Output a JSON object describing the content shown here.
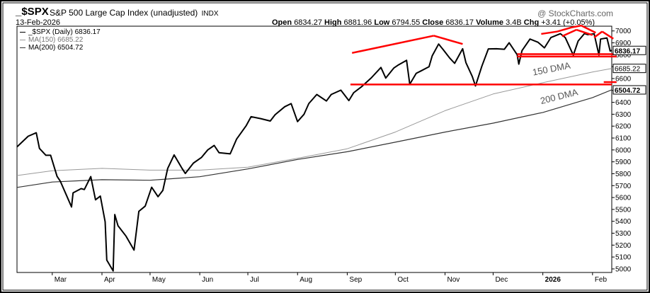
{
  "header": {
    "symbol": "_$SPX",
    "description": "S&P 500 Large Cap Index (unadjusted)",
    "exchange": "INDX",
    "date": "13-Feb-2026",
    "open_label": "Open",
    "open": "6834.27",
    "high_label": "High",
    "high": "6881.96",
    "low_label": "Low",
    "low": "6794.55",
    "close_label": "Close",
    "close": "6836.17",
    "volume_label": "Volume",
    "volume": "3.4B",
    "chg_label": "Chg",
    "chg": "+3.41 (+0.05%)",
    "watermark": "@ StockCharts.com"
  },
  "legend": [
    {
      "label": "_$SPX (Daily) 6836.17",
      "color": "#000000"
    },
    {
      "label": "MA(150) 6685.22",
      "color": "#999999"
    },
    {
      "label": "MA(200) 6504.72",
      "color": "#333333"
    }
  ],
  "chart_data": {
    "type": "line",
    "ylim": [
      4970,
      7040
    ],
    "y_ticks": [
      5000,
      5100,
      5200,
      5300,
      5400,
      5500,
      5600,
      5700,
      5800,
      5900,
      6000,
      6100,
      6200,
      6300,
      6400,
      6500,
      6600,
      6700,
      6800,
      6900,
      7000
    ],
    "x_labels": [
      {
        "label": "Mar",
        "date": "2025-03-01"
      },
      {
        "label": "Apr",
        "date": "2025-04-01"
      },
      {
        "label": "May",
        "date": "2025-05-01"
      },
      {
        "label": "Jun",
        "date": "2025-06-01"
      },
      {
        "label": "Jul",
        "date": "2025-07-01"
      },
      {
        "label": "Aug",
        "date": "2025-08-01"
      },
      {
        "label": "Sep",
        "date": "2025-09-01"
      },
      {
        "label": "Oct",
        "date": "2025-10-01"
      },
      {
        "label": "Nov",
        "date": "2025-11-01"
      },
      {
        "label": "Dec",
        "date": "2025-12-01"
      },
      {
        "label": "2026",
        "date": "2026-01-01",
        "bold": true
      },
      {
        "label": "Feb",
        "date": "2026-02-01"
      }
    ],
    "x_range": [
      "2025-02-07",
      "2026-02-13"
    ],
    "series": [
      {
        "name": "_$SPX (Daily)",
        "color": "#000000",
        "points": [
          [
            "2025-02-07",
            6026
          ],
          [
            "2025-02-14",
            6115
          ],
          [
            "2025-02-19",
            6144
          ],
          [
            "2025-02-21",
            6013
          ],
          [
            "2025-02-25",
            5955
          ],
          [
            "2025-02-28",
            5955
          ],
          [
            "2025-03-04",
            5778
          ],
          [
            "2025-03-06",
            5738
          ],
          [
            "2025-03-10",
            5614
          ],
          [
            "2025-03-13",
            5521
          ],
          [
            "2025-03-14",
            5639
          ],
          [
            "2025-03-19",
            5675
          ],
          [
            "2025-03-21",
            5667
          ],
          [
            "2025-03-25",
            5776
          ],
          [
            "2025-03-28",
            5581
          ],
          [
            "2025-03-31",
            5612
          ],
          [
            "2025-04-03",
            5396
          ],
          [
            "2025-04-04",
            5074
          ],
          [
            "2025-04-08",
            4983
          ],
          [
            "2025-04-09",
            5457
          ],
          [
            "2025-04-11",
            5363
          ],
          [
            "2025-04-16",
            5275
          ],
          [
            "2025-04-21",
            5158
          ],
          [
            "2025-04-24",
            5484
          ],
          [
            "2025-04-28",
            5528
          ],
          [
            "2025-05-02",
            5686
          ],
          [
            "2025-05-06",
            5607
          ],
          [
            "2025-05-09",
            5660
          ],
          [
            "2025-05-12",
            5844
          ],
          [
            "2025-05-16",
            5958
          ],
          [
            "2025-05-21",
            5844
          ],
          [
            "2025-05-23",
            5802
          ],
          [
            "2025-05-28",
            5889
          ],
          [
            "2025-06-02",
            5936
          ],
          [
            "2025-06-06",
            6000
          ],
          [
            "2025-06-10",
            6038
          ],
          [
            "2025-06-13",
            5977
          ],
          [
            "2025-06-20",
            5967
          ],
          [
            "2025-06-24",
            6092
          ],
          [
            "2025-06-30",
            6205
          ],
          [
            "2025-07-03",
            6279
          ],
          [
            "2025-07-09",
            6263
          ],
          [
            "2025-07-15",
            6243
          ],
          [
            "2025-07-18",
            6296
          ],
          [
            "2025-07-24",
            6363
          ],
          [
            "2025-07-28",
            6389
          ],
          [
            "2025-08-01",
            6238
          ],
          [
            "2025-08-05",
            6299
          ],
          [
            "2025-08-08",
            6389
          ],
          [
            "2025-08-13",
            6466
          ],
          [
            "2025-08-19",
            6411
          ],
          [
            "2025-08-22",
            6466
          ],
          [
            "2025-08-28",
            6502
          ],
          [
            "2025-09-02",
            6415
          ],
          [
            "2025-09-05",
            6481
          ],
          [
            "2025-09-10",
            6532
          ],
          [
            "2025-09-16",
            6606
          ],
          [
            "2025-09-22",
            6693
          ],
          [
            "2025-09-25",
            6604
          ],
          [
            "2025-09-30",
            6688
          ],
          [
            "2025-10-03",
            6715
          ],
          [
            "2025-10-08",
            6753
          ],
          [
            "2025-10-10",
            6552
          ],
          [
            "2025-10-14",
            6644
          ],
          [
            "2025-10-17",
            6664
          ],
          [
            "2025-10-22",
            6699
          ],
          [
            "2025-10-24",
            6791
          ],
          [
            "2025-10-28",
            6890
          ],
          [
            "2025-10-31",
            6840
          ],
          [
            "2025-11-04",
            6771
          ],
          [
            "2025-11-07",
            6728
          ],
          [
            "2025-11-12",
            6850
          ],
          [
            "2025-11-14",
            6734
          ],
          [
            "2025-11-18",
            6617
          ],
          [
            "2025-11-20",
            6538
          ],
          [
            "2025-11-24",
            6705
          ],
          [
            "2025-11-28",
            6849
          ],
          [
            "2025-12-03",
            6850
          ],
          [
            "2025-12-08",
            6846
          ],
          [
            "2025-12-11",
            6901
          ],
          [
            "2025-12-16",
            6800
          ],
          [
            "2025-12-17",
            6721
          ],
          [
            "2025-12-19",
            6834
          ],
          [
            "2025-12-24",
            6932
          ],
          [
            "2025-12-29",
            6905
          ],
          [
            "2026-01-02",
            6858
          ],
          [
            "2026-01-06",
            6944
          ],
          [
            "2026-01-12",
            6977
          ],
          [
            "2026-01-15",
            6944
          ],
          [
            "2026-01-20",
            6797
          ],
          [
            "2026-01-23",
            6915
          ],
          [
            "2026-01-27",
            6978
          ],
          [
            "2026-01-29",
            6969
          ],
          [
            "2026-02-02",
            6976
          ],
          [
            "2026-02-05",
            6798
          ],
          [
            "2026-02-06",
            6932
          ],
          [
            "2026-02-10",
            6941
          ],
          [
            "2026-02-12",
            6832
          ],
          [
            "2026-02-13",
            6836
          ]
        ]
      },
      {
        "name": "MA(150)",
        "color": "#999999",
        "points": [
          [
            "2025-02-07",
            5785
          ],
          [
            "2025-03-01",
            5825
          ],
          [
            "2025-04-01",
            5845
          ],
          [
            "2025-05-01",
            5830
          ],
          [
            "2025-06-01",
            5830
          ],
          [
            "2025-07-01",
            5855
          ],
          [
            "2025-08-01",
            5930
          ],
          [
            "2025-09-01",
            6010
          ],
          [
            "2025-10-01",
            6150
          ],
          [
            "2025-11-01",
            6330
          ],
          [
            "2025-12-01",
            6470
          ],
          [
            "2026-01-01",
            6565
          ],
          [
            "2026-02-01",
            6655
          ],
          [
            "2026-02-13",
            6685
          ]
        ]
      },
      {
        "name": "MA(200)",
        "color": "#333333",
        "points": [
          [
            "2025-02-07",
            5685
          ],
          [
            "2025-03-01",
            5730
          ],
          [
            "2025-04-01",
            5750
          ],
          [
            "2025-05-01",
            5745
          ],
          [
            "2025-06-01",
            5775
          ],
          [
            "2025-07-01",
            5840
          ],
          [
            "2025-08-01",
            5920
          ],
          [
            "2025-09-01",
            5985
          ],
          [
            "2025-10-01",
            6065
          ],
          [
            "2025-11-01",
            6150
          ],
          [
            "2025-12-01",
            6225
          ],
          [
            "2026-01-01",
            6315
          ],
          [
            "2026-02-01",
            6440
          ],
          [
            "2026-02-13",
            6505
          ]
        ]
      }
    ],
    "price_labels": [
      {
        "value": 6836.17,
        "text": "6836.17",
        "style": "boxed-bold"
      },
      {
        "value": 6685.22,
        "text": "6685.22",
        "style": "boxed"
      },
      {
        "value": 6504.72,
        "text": "6504.72",
        "style": "boxed-bold"
      }
    ],
    "annotations": [
      {
        "text": "150 DMA",
        "date": "2025-12-26",
        "value": 6625,
        "angle": -11
      },
      {
        "text": "200 DMA",
        "date": "2025-12-31",
        "value": 6385,
        "angle": -14
      }
    ],
    "trendlines": [
      {
        "color": "#ff0000",
        "from": [
          "2025-09-04",
          6815
        ],
        "to": [
          "2025-10-25",
          6960
        ]
      },
      {
        "color": "#ff0000",
        "from": [
          "2025-10-25",
          6960
        ],
        "to": [
          "2025-11-12",
          6890
        ]
      },
      {
        "color": "#ff0000",
        "from": [
          "2025-09-03",
          6550
        ],
        "to": [
          "2026-02-13",
          6550
        ]
      },
      {
        "color": "#ff0000",
        "from": [
          "2026-02-08",
          6570
        ],
        "to": [
          "2026-02-16",
          6570
        ]
      },
      {
        "color": "#ff0000",
        "from": [
          "2025-12-16",
          6785
        ],
        "to": [
          "2026-02-16",
          6785
        ]
      },
      {
        "color": "#ff0000",
        "from": [
          "2025-12-16",
          6805
        ],
        "to": [
          "2026-02-16",
          6805
        ]
      },
      {
        "color": "#ff0000",
        "from": [
          "2025-12-31",
          6975
        ],
        "to": [
          "2026-01-10",
          6995
        ]
      },
      {
        "color": "#ff0000",
        "from": [
          "2026-01-10",
          6995
        ],
        "to": [
          "2026-01-19",
          7030
        ]
      },
      {
        "color": "#ff0000",
        "from": [
          "2026-01-19",
          7030
        ],
        "to": [
          "2026-01-25",
          7045
        ]
      },
      {
        "color": "#ff0000",
        "from": [
          "2026-01-25",
          7045
        ],
        "to": [
          "2026-02-03",
          6985
        ]
      },
      {
        "color": "#ff0000",
        "from": [
          "2026-01-13",
          6955
        ],
        "to": [
          "2026-01-22",
          7010
        ]
      },
      {
        "color": "#ff0000",
        "from": [
          "2026-01-22",
          7010
        ],
        "to": [
          "2026-02-01",
          6965
        ]
      },
      {
        "color": "#ff0000",
        "from": [
          "2026-02-02",
          6945
        ],
        "to": [
          "2026-02-07",
          6995
        ]
      },
      {
        "color": "#ff0000",
        "from": [
          "2026-02-07",
          6995
        ],
        "to": [
          "2026-02-14",
          6935
        ]
      }
    ]
  }
}
